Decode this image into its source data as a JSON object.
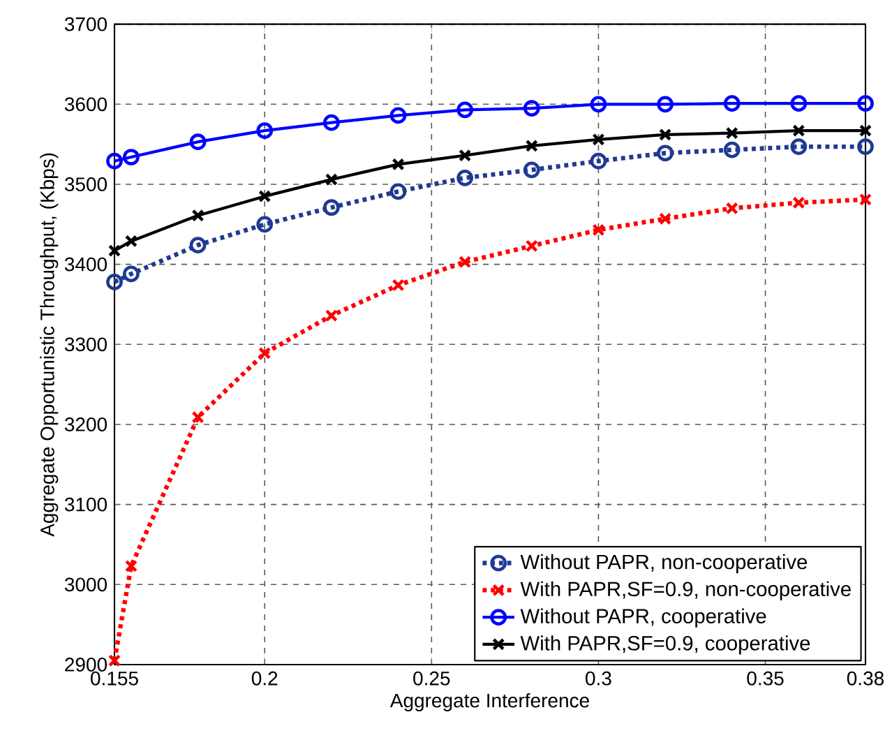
{
  "chart_data": {
    "type": "line",
    "xlabel": "Aggregate Interference",
    "ylabel": "Aggregate Opportunistic Throughput, (Kbps)",
    "xlim": [
      0.155,
      0.38
    ],
    "ylim": [
      2900,
      3700
    ],
    "xticks": [
      0.155,
      0.2,
      0.25,
      0.3,
      0.35,
      0.38
    ],
    "yticks": [
      2900,
      3000,
      3100,
      3200,
      3300,
      3400,
      3500,
      3600,
      3700
    ],
    "grid": true,
    "legend": "bottom right",
    "series": [
      {
        "name": "Without PAPR, non-cooperative",
        "color": "#1f3a93",
        "marker": "circle",
        "line_style": "dotted",
        "x": [
          0.155,
          0.16,
          0.18,
          0.2,
          0.22,
          0.24,
          0.26,
          0.28,
          0.3,
          0.32,
          0.34,
          0.36,
          0.38
        ],
        "values": [
          3378,
          3388,
          3424,
          3450,
          3471,
          3491,
          3508,
          3518,
          3529,
          3539,
          3543,
          3547,
          3547
        ]
      },
      {
        "name": "With PAPR,SF=0.9, non-cooperative",
        "color": "#ff0000",
        "marker": "cross",
        "line_style": "dotted",
        "x": [
          0.155,
          0.16,
          0.18,
          0.2,
          0.22,
          0.24,
          0.26,
          0.28,
          0.3,
          0.32,
          0.34,
          0.36,
          0.38
        ],
        "values": [
          2905,
          3023,
          3209,
          3289,
          3336,
          3374,
          3403,
          3423,
          3443,
          3457,
          3470,
          3477,
          3481
        ]
      },
      {
        "name": "Without PAPR, cooperative",
        "color": "#0000ff",
        "marker": "circle",
        "line_style": "solid",
        "x": [
          0.155,
          0.16,
          0.18,
          0.2,
          0.22,
          0.24,
          0.26,
          0.28,
          0.3,
          0.32,
          0.34,
          0.36,
          0.38
        ],
        "values": [
          3529,
          3534,
          3553,
          3567,
          3577,
          3586,
          3593,
          3595,
          3600,
          3600,
          3601,
          3601,
          3601
        ]
      },
      {
        "name": "With PAPR,SF=0.9, cooperative",
        "color": "#000000",
        "marker": "cross",
        "line_style": "solid",
        "x": [
          0.155,
          0.16,
          0.18,
          0.2,
          0.22,
          0.24,
          0.26,
          0.28,
          0.3,
          0.32,
          0.34,
          0.36,
          0.38
        ],
        "values": [
          3417,
          3429,
          3461,
          3485,
          3506,
          3525,
          3536,
          3548,
          3556,
          3562,
          3564,
          3567,
          3567
        ]
      }
    ]
  }
}
